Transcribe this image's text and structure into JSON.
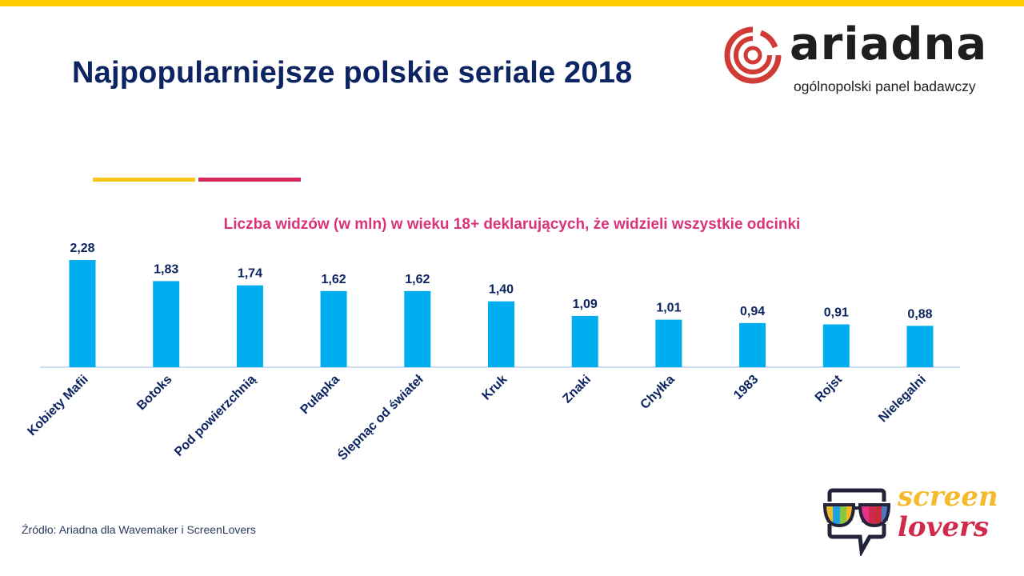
{
  "header": {
    "title": "Najpopularniejsze polskie seriale 2018"
  },
  "logos": {
    "ariadna": {
      "name": "ariadna",
      "tagline": "ogólnopolski panel badawczy",
      "icon": "ariadna-spiral-icon",
      "color": "#d13b36"
    },
    "screenlovers": {
      "line1": "screen",
      "line2": "lovers",
      "icon": "glasses-speech-bubble-icon"
    }
  },
  "colors": {
    "top_bar": "#ffcc00",
    "title": "#0c2461",
    "subtitle": "#d9337a",
    "bar": "#00aeef",
    "accent_yellow": "#f5c518",
    "accent_red": "#d6285a"
  },
  "footer": {
    "source": "Źródło: Ariadna dla Wavemaker i ScreenLovers"
  },
  "chart_data": {
    "type": "bar",
    "title": "Liczba widzów (w mln) w wieku 18+ deklarujących, że widzieli wszystkie odcinki",
    "xlabel": "",
    "ylabel": "",
    "ylim": [
      0,
      2.28
    ],
    "grid": false,
    "legend": "none",
    "categories": [
      "Kobiety Mafii",
      "Botoks",
      "Pod powierzchnią",
      "Pułapka",
      "Ślepnąc od świateł",
      "Kruk",
      "Znaki",
      "Chyłka",
      "1983",
      "Rojst",
      "Nielegalni"
    ],
    "values": [
      2.28,
      1.83,
      1.74,
      1.62,
      1.62,
      1.4,
      1.09,
      1.01,
      0.94,
      0.91,
      0.88
    ],
    "value_labels": [
      "2,28",
      "1,83",
      "1,74",
      "1,62",
      "1,62",
      "1,40",
      "1,09",
      "1,01",
      "0,94",
      "0,91",
      "0,88"
    ]
  }
}
